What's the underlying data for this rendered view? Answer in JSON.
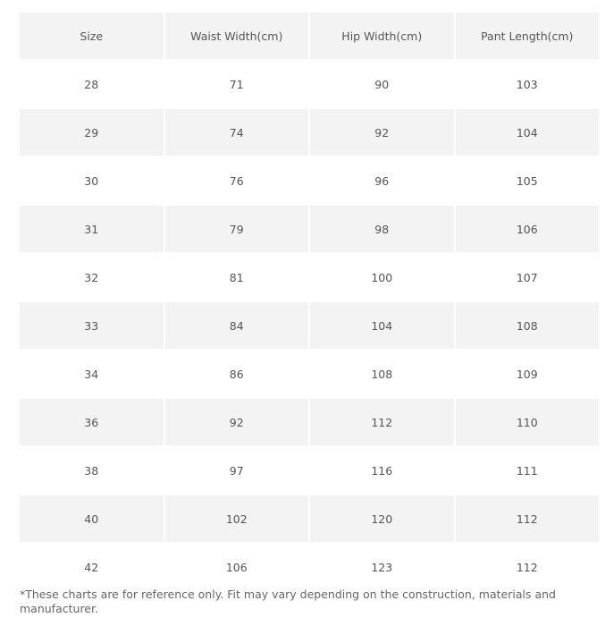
{
  "table": {
    "header": [
      "Size",
      "Waist Width(cm)",
      "Hip Width(cm)",
      "Pant Length(cm)"
    ],
    "rows": [
      [
        28,
        71,
        90,
        103
      ],
      [
        29,
        74,
        92,
        104
      ],
      [
        30,
        76,
        96,
        105
      ],
      [
        31,
        79,
        98,
        106
      ],
      [
        32,
        81,
        100,
        107
      ],
      [
        33,
        84,
        104,
        108
      ],
      [
        34,
        86,
        108,
        109
      ],
      [
        36,
        92,
        112,
        110
      ],
      [
        38,
        97,
        116,
        111
      ],
      [
        40,
        102,
        120,
        112
      ],
      [
        42,
        106,
        123,
        112
      ]
    ]
  },
  "note": "*These charts are for reference only. Fit may vary depending on the construction, materials and manufacturer."
}
